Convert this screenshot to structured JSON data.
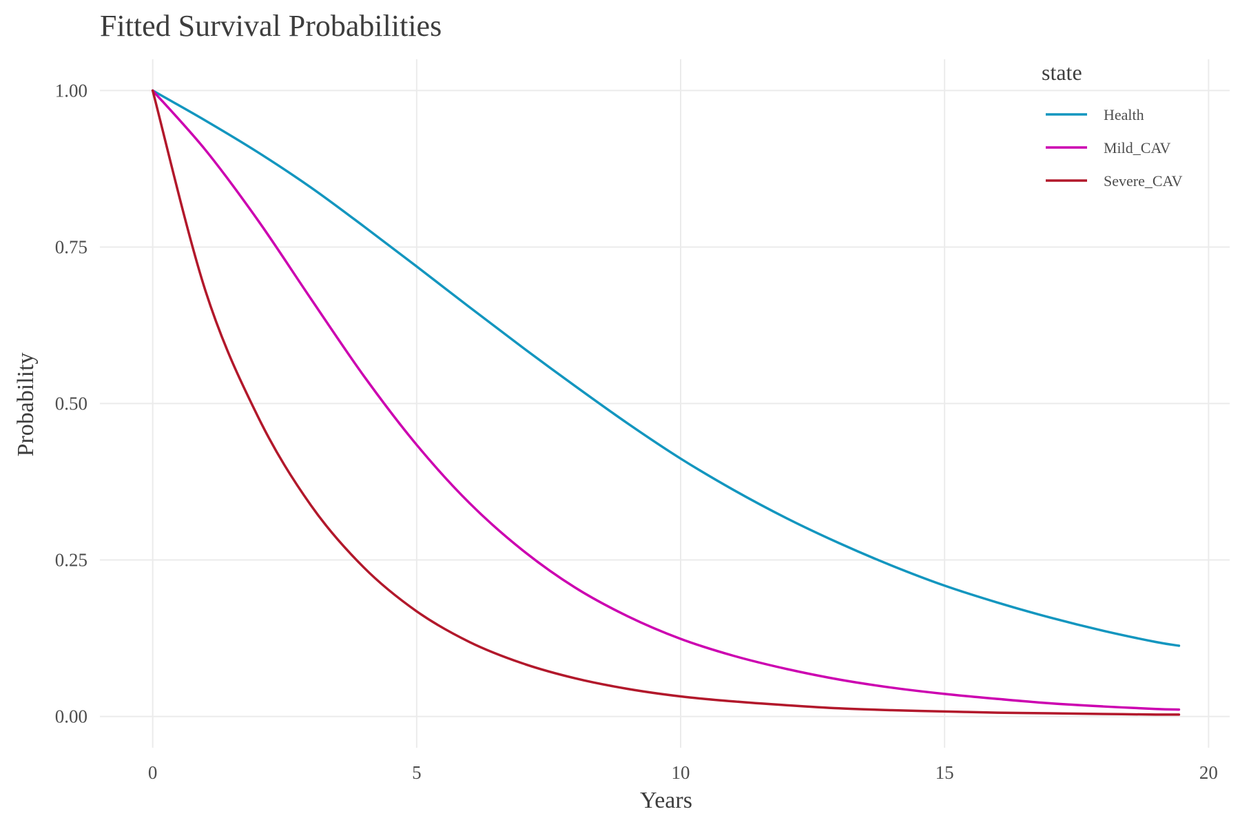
{
  "chart_data": {
    "type": "line",
    "title": "Fitted Survival Probabilities",
    "xlabel": "Years",
    "ylabel": "Probability",
    "xlim": [
      -1,
      20.4
    ],
    "ylim": [
      -0.05,
      1.05
    ],
    "x_ticks": [
      0,
      5,
      10,
      15,
      20
    ],
    "y_ticks": [
      0,
      0.25,
      0.5,
      0.75,
      1.0
    ],
    "x_tick_labels": [
      "0",
      "5",
      "10",
      "15",
      "20"
    ],
    "y_tick_labels": [
      "0.00",
      "0.25",
      "0.50",
      "0.75",
      "1.00"
    ],
    "grid": true,
    "legend": {
      "title": "state",
      "position": "top-right"
    },
    "x": [
      0,
      1,
      2,
      3,
      4,
      5,
      6,
      7,
      8,
      9,
      10,
      11,
      12,
      13,
      14,
      15,
      16,
      17,
      18,
      19,
      19.44
    ],
    "series": [
      {
        "name": "Health",
        "color": "#1396bf",
        "values": [
          1.0,
          0.952,
          0.901,
          0.845,
          0.783,
          0.719,
          0.654,
          0.59,
          0.528,
          0.468,
          0.412,
          0.362,
          0.317,
          0.277,
          0.241,
          0.209,
          0.182,
          0.158,
          0.137,
          0.119,
          0.113
        ]
      },
      {
        "name": "Mild_CAV",
        "color": "#cc00b0",
        "values": [
          1.0,
          0.905,
          0.792,
          0.667,
          0.544,
          0.434,
          0.341,
          0.266,
          0.206,
          0.16,
          0.124,
          0.097,
          0.076,
          0.059,
          0.046,
          0.036,
          0.028,
          0.021,
          0.016,
          0.012,
          0.011
        ]
      },
      {
        "name": "Severe_CAV",
        "color": "#b2182b",
        "values": [
          1.0,
          0.68,
          0.478,
          0.337,
          0.238,
          0.168,
          0.119,
          0.085,
          0.061,
          0.044,
          0.032,
          0.024,
          0.018,
          0.013,
          0.01,
          0.008,
          0.006,
          0.005,
          0.004,
          0.003,
          0.003
        ]
      }
    ]
  }
}
